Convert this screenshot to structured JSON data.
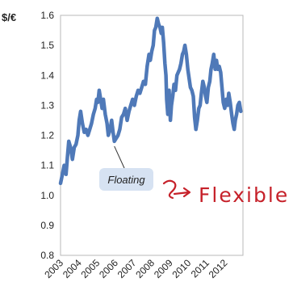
{
  "chart_data": {
    "type": "line",
    "title": "",
    "xlabel": "",
    "ylabel": "$/€",
    "ylim": [
      0.8,
      1.6
    ],
    "yticks": [
      "1.6",
      "1.5",
      "1.4",
      "1.3",
      "1.2",
      "1.1",
      "1.0",
      "0.9",
      "0.8"
    ],
    "xlim": [
      2003,
      2013
    ],
    "xticks": [
      "2003",
      "2004",
      "2005",
      "2006",
      "2007",
      "2008",
      "2009",
      "2010",
      "2011",
      "2012"
    ],
    "grid": false,
    "colors": {
      "line": "#4f79b8",
      "plot_border": "#b8b8b8",
      "annotation_box": "#d6e2f2",
      "handwriting": "#c6212a"
    },
    "annotation": {
      "label": "Floating",
      "points_to_x": 2005.95,
      "points_to_y": 1.18
    },
    "handwritten_note": "Flexible",
    "series": [
      {
        "x": [
          2003.0,
          2003.1,
          2003.2,
          2003.3,
          2003.38,
          2003.45,
          2003.55,
          2003.65,
          2003.75,
          2003.85,
          2003.95,
          2004.02,
          2004.1,
          2004.2,
          2004.3,
          2004.4,
          2004.5,
          2004.6,
          2004.7,
          2004.8,
          2004.9,
          2004.98,
          2005.05,
          2005.12,
          2005.2,
          2005.28,
          2005.35,
          2005.45,
          2005.55,
          2005.62,
          2005.72,
          2005.8,
          2005.88,
          2005.95,
          2006.05,
          2006.15,
          2006.25,
          2006.35,
          2006.45,
          2006.55,
          2006.65,
          2006.75,
          2006.85,
          2006.95,
          2007.05,
          2007.15,
          2007.25,
          2007.35,
          2007.45,
          2007.55,
          2007.65,
          2007.75,
          2007.85,
          2007.92,
          2008.0,
          2008.08,
          2008.15,
          2008.22,
          2008.3,
          2008.38,
          2008.45,
          2008.52,
          2008.58,
          2008.65,
          2008.72,
          2008.78,
          2008.82,
          2008.88,
          2008.95,
          2009.02,
          2009.08,
          2009.15,
          2009.22,
          2009.3,
          2009.38,
          2009.45,
          2009.52,
          2009.6,
          2009.68,
          2009.75,
          2009.82,
          2009.9,
          2009.98,
          2010.05,
          2010.12,
          2010.2,
          2010.28,
          2010.35,
          2010.42,
          2010.5,
          2010.58,
          2010.65,
          2010.72,
          2010.8,
          2010.88,
          2010.95,
          2011.02,
          2011.1,
          2011.18,
          2011.25,
          2011.32,
          2011.4,
          2011.48,
          2011.55,
          2011.62,
          2011.7,
          2011.78,
          2011.85,
          2011.92,
          2012.0,
          2012.08,
          2012.15,
          2012.22,
          2012.3,
          2012.38,
          2012.45,
          2012.52,
          2012.58,
          2012.65,
          2012.72,
          2012.8,
          2012.88
        ],
        "y": [
          1.04,
          1.07,
          1.1,
          1.07,
          1.13,
          1.18,
          1.16,
          1.12,
          1.16,
          1.17,
          1.2,
          1.25,
          1.28,
          1.24,
          1.21,
          1.22,
          1.2,
          1.22,
          1.24,
          1.27,
          1.29,
          1.32,
          1.31,
          1.35,
          1.32,
          1.29,
          1.32,
          1.27,
          1.24,
          1.2,
          1.22,
          1.25,
          1.21,
          1.18,
          1.19,
          1.2,
          1.22,
          1.26,
          1.27,
          1.29,
          1.25,
          1.28,
          1.3,
          1.32,
          1.3,
          1.33,
          1.35,
          1.34,
          1.36,
          1.38,
          1.37,
          1.43,
          1.47,
          1.45,
          1.48,
          1.5,
          1.55,
          1.56,
          1.59,
          1.57,
          1.56,
          1.54,
          1.56,
          1.51,
          1.44,
          1.4,
          1.32,
          1.27,
          1.35,
          1.25,
          1.3,
          1.33,
          1.37,
          1.35,
          1.4,
          1.41,
          1.42,
          1.44,
          1.47,
          1.48,
          1.5,
          1.47,
          1.42,
          1.39,
          1.36,
          1.35,
          1.33,
          1.26,
          1.22,
          1.25,
          1.29,
          1.3,
          1.34,
          1.38,
          1.36,
          1.33,
          1.31,
          1.36,
          1.38,
          1.42,
          1.44,
          1.47,
          1.42,
          1.45,
          1.42,
          1.43,
          1.41,
          1.36,
          1.31,
          1.29,
          1.32,
          1.3,
          1.34,
          1.31,
          1.27,
          1.24,
          1.22,
          1.25,
          1.27,
          1.3,
          1.31,
          1.28
        ]
      }
    ]
  }
}
